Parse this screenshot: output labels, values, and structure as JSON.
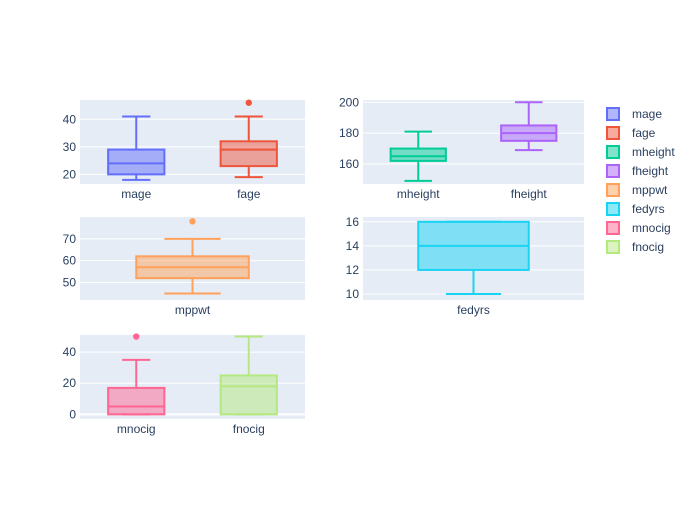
{
  "chart_data": {
    "type": "box",
    "colors": {
      "mage": "#636efa",
      "fage": "#EF553B",
      "mheight": "#00cc96",
      "fheight": "#ab63fa",
      "mppwt": "#FFA15A",
      "fedyrs": "#19d3f3",
      "mnocig": "#FF6692",
      "fnocig": "#B6E880"
    },
    "legend": {
      "placement": "right",
      "entries": [
        "mage",
        "fage",
        "mheight",
        "fheight",
        "mppwt",
        "fedyrs",
        "mnocig",
        "fnocig"
      ]
    },
    "subplots": [
      {
        "id": "s1",
        "ylim": [
          16.5,
          47
        ],
        "yticks": [
          20,
          30,
          40
        ],
        "grid": true,
        "boxes": [
          {
            "name": "mage",
            "min": 18,
            "q1": 20,
            "median": 24,
            "q3": 29,
            "max": 41,
            "outliers": []
          },
          {
            "name": "fage",
            "min": 19,
            "q1": 23,
            "median": 29,
            "q3": 32,
            "max": 41,
            "outliers": [
              46
            ]
          }
        ]
      },
      {
        "id": "s2",
        "ylim": [
          147,
          201.5
        ],
        "yticks": [
          160,
          180,
          200
        ],
        "grid": true,
        "boxes": [
          {
            "name": "mheight",
            "min": 149,
            "q1": 162,
            "median": 165,
            "q3": 170,
            "max": 181,
            "outliers": []
          },
          {
            "name": "fheight",
            "min": 169,
            "q1": 175,
            "median": 180,
            "q3": 185,
            "max": 200,
            "outliers": []
          }
        ]
      },
      {
        "id": "s3",
        "ylim": [
          42,
          80
        ],
        "yticks": [
          50,
          60,
          70
        ],
        "grid": true,
        "boxes": [
          {
            "name": "mppwt",
            "min": 45,
            "q1": 52,
            "median": 57,
            "q3": 62,
            "max": 70,
            "outliers": [
              78
            ]
          }
        ]
      },
      {
        "id": "s4",
        "ylim": [
          9.5,
          16.4
        ],
        "yticks": [
          10,
          12,
          14,
          16
        ],
        "grid": true,
        "boxes": [
          {
            "name": "fedyrs",
            "min": 10,
            "q1": 12,
            "median": 14,
            "q3": 16,
            "max": 16,
            "outliers": []
          }
        ]
      },
      {
        "id": "s5",
        "ylim": [
          -3,
          51
        ],
        "yticks": [
          0,
          20,
          40
        ],
        "grid": true,
        "boxes": [
          {
            "name": "mnocig",
            "min": 0,
            "q1": 0,
            "median": 5,
            "q3": 17,
            "max": 35,
            "outliers": [
              50
            ]
          },
          {
            "name": "fnocig",
            "min": 0,
            "q1": 0,
            "median": 18,
            "q3": 25,
            "max": 50,
            "outliers": []
          }
        ]
      }
    ]
  }
}
